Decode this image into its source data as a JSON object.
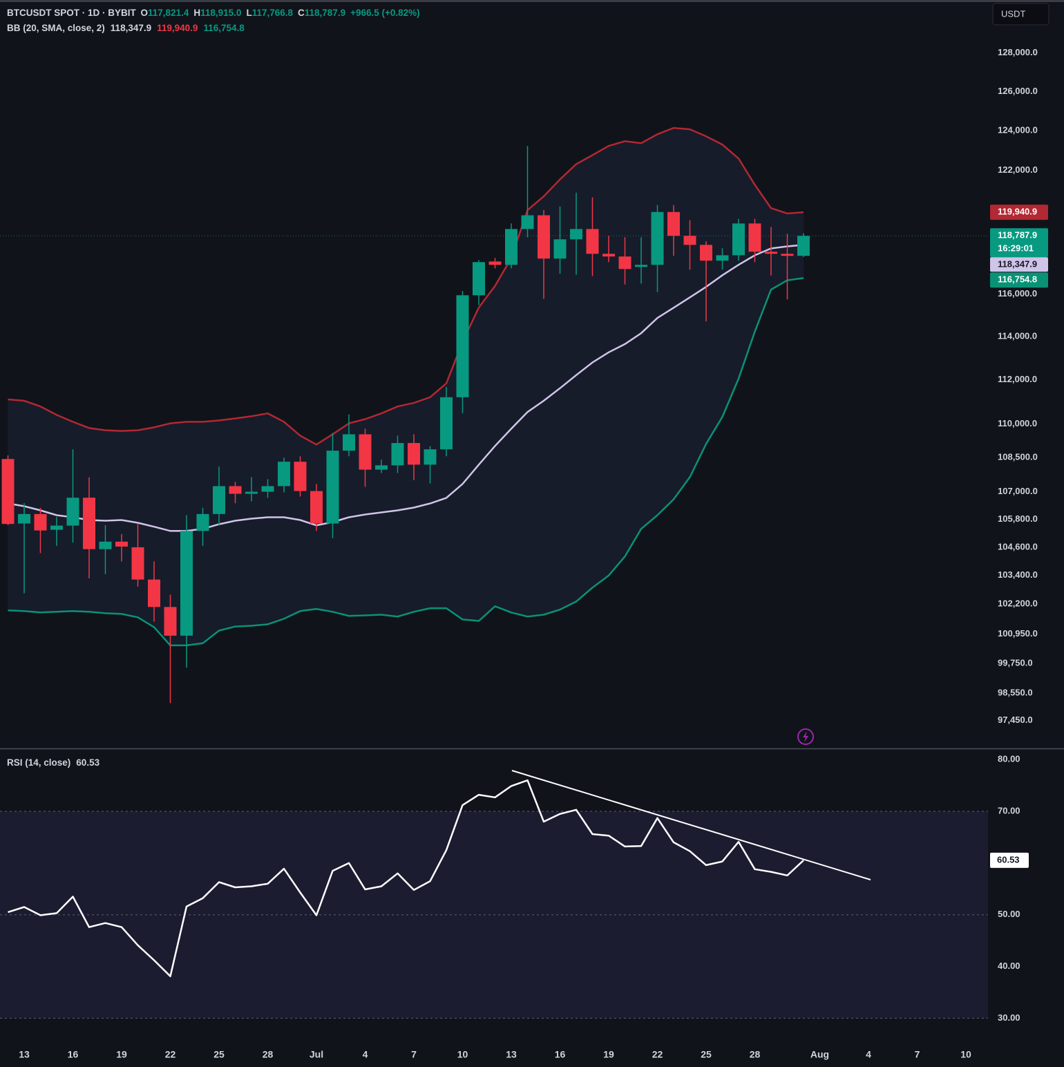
{
  "header": {
    "symbol": "BTCUSDT SPOT · 1D · BYBIT",
    "o": "O",
    "open": "117,821.4",
    "h": "H",
    "high": "118,915.0",
    "l": "L",
    "low": "117,766.8",
    "c": "C",
    "close": "118,787.9",
    "change": "+966.5 (+0.82%)",
    "bb": "BB (20, SMA, close, 2)",
    "bb_basis": "118,347.9",
    "bb_upper": "119,940.9",
    "bb_lower": "116,754.8",
    "currency": "USDT",
    "countdown": "16:29:01"
  },
  "chart_data": [
    {
      "type": "candlestick",
      "log": true,
      "up_color": "#089981",
      "down_color": "#f23645",
      "x": [
        "06-12",
        "06-13",
        "06-14",
        "06-15",
        "06-16",
        "06-17",
        "06-18",
        "06-19",
        "06-20",
        "06-21",
        "06-22",
        "06-23",
        "06-24",
        "06-25",
        "06-26",
        "06-27",
        "06-28",
        "06-29",
        "06-30",
        "07-01",
        "07-02",
        "07-03",
        "07-04",
        "07-05",
        "07-06",
        "07-07",
        "07-08",
        "07-09",
        "07-10",
        "07-11",
        "07-12",
        "07-13",
        "07-14",
        "07-15",
        "07-16",
        "07-17",
        "07-18",
        "07-19",
        "07-20",
        "07-21",
        "07-22",
        "07-23",
        "07-24",
        "07-25",
        "07-26",
        "07-27",
        "07-28",
        "07-29",
        "07-30",
        "07-31"
      ],
      "open": [
        108440,
        105620,
        106030,
        105350,
        105530,
        106740,
        104520,
        104840,
        104600,
        103230,
        102080,
        100890,
        105300,
        106030,
        107245,
        106910,
        107000,
        107245,
        108320,
        107030,
        105620,
        108810,
        109540,
        107970,
        108160,
        109150,
        108190,
        108870,
        111210,
        115940,
        117550,
        117390,
        119120,
        119790,
        117690,
        118620,
        119120,
        117920,
        117790,
        117290,
        117390,
        119950,
        118790,
        118350,
        117590,
        117850,
        119390,
        118020,
        117920,
        117821.4
      ],
      "high": [
        108600,
        106500,
        106300,
        105900,
        108870,
        107630,
        105550,
        105170,
        105620,
        104000,
        102600,
        105980,
        106300,
        108100,
        107430,
        107640,
        107550,
        108500,
        108560,
        107340,
        109600,
        110430,
        109790,
        108410,
        109480,
        109540,
        109010,
        111680,
        116140,
        117620,
        117720,
        119390,
        123230,
        120050,
        120220,
        120900,
        120670,
        118790,
        118720,
        118720,
        120290,
        120290,
        119550,
        118520,
        118190,
        119620,
        119620,
        119220,
        118890,
        118915.0
      ],
      "low": [
        105550,
        102650,
        104350,
        104660,
        104800,
        103280,
        103460,
        104000,
        102930,
        101470,
        98150,
        99580,
        104660,
        105530,
        106500,
        106580,
        106730,
        106970,
        106790,
        105300,
        104990,
        108560,
        107215,
        107820,
        107820,
        107510,
        107360,
        108560,
        110490,
        115480,
        117220,
        117220,
        118720,
        115770,
        116960,
        116920,
        116850,
        117520,
        116450,
        116490,
        116090,
        117820,
        117160,
        114710,
        117160,
        117590,
        117520,
        116880,
        115740,
        117766.8
      ],
      "close": [
        105600,
        106030,
        105320,
        105530,
        106740,
        104520,
        104840,
        104630,
        103230,
        102080,
        100890,
        105300,
        106030,
        107245,
        106910,
        107000,
        107245,
        108320,
        107030,
        105620,
        108810,
        109540,
        107970,
        108160,
        109150,
        108190,
        108870,
        111210,
        115940,
        117520,
        117390,
        119120,
        119790,
        117690,
        118620,
        119120,
        117920,
        117790,
        117190,
        117390,
        119950,
        118790,
        118350,
        117590,
        117850,
        119390,
        118020,
        117920,
        117821.4,
        118787.9
      ],
      "series": [
        {
          "color": "#b22833",
          "values": [
            111110,
            111050,
            110790,
            110410,
            110100,
            109820,
            109720,
            109690,
            109720,
            109850,
            110030,
            110100,
            110100,
            110160,
            110250,
            110350,
            110480,
            110100,
            109480,
            109080,
            109540,
            110030,
            110220,
            110480,
            110790,
            110950,
            111210,
            111840,
            113750,
            115360,
            116380,
            117720,
            120040,
            120720,
            121560,
            122320,
            122770,
            123230,
            123470,
            123370,
            123820,
            124140,
            124070,
            123720,
            123300,
            122600,
            121290,
            120140,
            119880,
            119940.9
          ]
        },
        {
          "color": "#d1c4e9",
          "values": [
            106490,
            106370,
            106190,
            105980,
            105890,
            105770,
            105740,
            105770,
            105650,
            105480,
            105300,
            105300,
            105390,
            105590,
            105740,
            105830,
            105890,
            105890,
            105770,
            105540,
            105680,
            105890,
            106010,
            106100,
            106190,
            106310,
            106490,
            106730,
            107340,
            108190,
            109020,
            109790,
            110540,
            111050,
            111620,
            112220,
            112800,
            113270,
            113650,
            114160,
            114870,
            115350,
            115840,
            116340,
            116890,
            117390,
            117850,
            118180,
            118280,
            118347.9
          ]
        },
        {
          "color": "#0a9276",
          "values": [
            101940,
            101910,
            101850,
            101880,
            101910,
            101880,
            101820,
            101790,
            101650,
            101240,
            100490,
            100490,
            100580,
            101100,
            101270,
            101300,
            101360,
            101590,
            101910,
            102000,
            101880,
            101710,
            101730,
            101760,
            101680,
            101880,
            102030,
            102030,
            101560,
            101500,
            102110,
            101850,
            101680,
            101760,
            101970,
            102310,
            102890,
            103400,
            104210,
            105390,
            105980,
            106670,
            107640,
            109110,
            110320,
            112060,
            114230,
            116210,
            116650,
            116754.8
          ]
        }
      ],
      "ylim": [
        96350,
        130800
      ],
      "yticks": [
        {
          "value": 128000,
          "label": "128,000.0"
        },
        {
          "value": 126000,
          "label": "126,000.0"
        },
        {
          "value": 124000,
          "label": "124,000.0"
        },
        {
          "value": 122000,
          "label": "122,000.0"
        },
        {
          "value": 116000,
          "label": "116,000.0"
        },
        {
          "value": 114000,
          "label": "114,000.0"
        },
        {
          "value": 112000,
          "label": "112,000.0"
        },
        {
          "value": 110000,
          "label": "110,000.0"
        },
        {
          "value": 108500,
          "label": "108,500.0"
        },
        {
          "value": 107000,
          "label": "107,000.0"
        },
        {
          "value": 105800,
          "label": "105,800.0"
        },
        {
          "value": 104600,
          "label": "104,600.0"
        },
        {
          "value": 103400,
          "label": "103,400.0"
        },
        {
          "value": 102200,
          "label": "102,200.0"
        },
        {
          "value": 100950,
          "label": "100,950.0"
        },
        {
          "value": 99750,
          "label": "99,750.0"
        },
        {
          "value": 98550,
          "label": "98,550.0"
        },
        {
          "value": 97450,
          "label": "97,450.0"
        }
      ]
    },
    {
      "type": "line",
      "title": "RSI (14, close)",
      "value_label": "60.53",
      "color": "#ffffff",
      "x": [
        "06-12",
        "06-13",
        "06-14",
        "06-15",
        "06-16",
        "06-17",
        "06-18",
        "06-19",
        "06-20",
        "06-21",
        "06-22",
        "06-23",
        "06-24",
        "06-25",
        "06-26",
        "06-27",
        "06-28",
        "06-29",
        "06-30",
        "07-01",
        "07-02",
        "07-03",
        "07-04",
        "07-05",
        "07-06",
        "07-07",
        "07-08",
        "07-09",
        "07-10",
        "07-11",
        "07-12",
        "07-13",
        "07-14",
        "07-15",
        "07-16",
        "07-17",
        "07-18",
        "07-19",
        "07-20",
        "07-21",
        "07-22",
        "07-23",
        "07-24",
        "07-25",
        "07-26",
        "07-27",
        "07-28",
        "07-29",
        "07-30",
        "07-31"
      ],
      "values": [
        50.5,
        51.5,
        49.9,
        50.3,
        53.5,
        47.6,
        48.4,
        47.6,
        44.1,
        41.2,
        38.1,
        51.6,
        53.2,
        56.3,
        55.3,
        55.5,
        56.0,
        58.9,
        54.3,
        49.9,
        58.5,
        60.0,
        54.9,
        55.5,
        58.0,
        54.8,
        56.5,
        62.5,
        71.2,
        73.2,
        72.7,
        74.9,
        76.0,
        68.0,
        69.5,
        70.3,
        65.6,
        65.3,
        63.2,
        63.3,
        68.7,
        64.0,
        62.3,
        59.6,
        60.3,
        64.1,
        58.8,
        58.3,
        57.6,
        60.53
      ],
      "ylim": [
        25.1,
        81.9
      ],
      "yticks": [
        {
          "value": 80,
          "label": "80.00"
        },
        {
          "value": 70,
          "label": "70.00"
        },
        {
          "value": 50,
          "label": "50.00"
        },
        {
          "value": 40,
          "label": "40.00"
        },
        {
          "value": 30,
          "label": "30.00"
        }
      ],
      "levels": [
        70,
        50,
        30
      ],
      "xticks": [
        {
          "value": "06-13",
          "label": "13"
        },
        {
          "value": "06-16",
          "label": "16"
        },
        {
          "value": "06-19",
          "label": "19"
        },
        {
          "value": "06-22",
          "label": "22"
        },
        {
          "value": "06-25",
          "label": "25"
        },
        {
          "value": "06-28",
          "label": "28"
        },
        {
          "value": "07-01",
          "label": "Jul"
        },
        {
          "value": "07-04",
          "label": "4"
        },
        {
          "value": "07-07",
          "label": "7"
        },
        {
          "value": "07-10",
          "label": "10"
        },
        {
          "value": "07-13",
          "label": "13"
        },
        {
          "value": "07-16",
          "label": "16"
        },
        {
          "value": "07-19",
          "label": "19"
        },
        {
          "value": "07-22",
          "label": "22"
        },
        {
          "value": "07-25",
          "label": "25"
        },
        {
          "value": "07-28",
          "label": "28"
        },
        {
          "value": "08-01",
          "label": "Aug"
        },
        {
          "value": "08-04",
          "label": "4"
        },
        {
          "value": "08-07",
          "label": "7"
        },
        {
          "value": "08-10",
          "label": "10"
        }
      ]
    }
  ]
}
